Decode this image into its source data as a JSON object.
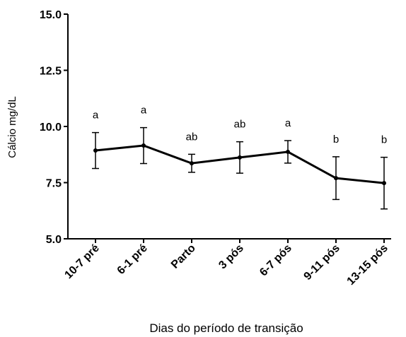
{
  "chart_data": {
    "type": "line",
    "y_label": "Cálcio mg/dL",
    "x_label": "Dias do período de transição",
    "categories": [
      "10-7 pré",
      "6-1 pré",
      "Parto",
      "3 pós",
      "6-7 pós",
      "9-11 pós",
      "13-15 pós"
    ],
    "series": [
      {
        "color": "#000000",
        "values": [
          8.93,
          9.15,
          8.36,
          8.62,
          8.87,
          7.7,
          7.48
        ],
        "errors": [
          0.8,
          0.8,
          0.4,
          0.7,
          0.5,
          0.95,
          1.15
        ],
        "annotations": [
          "a",
          "a",
          "ab",
          "ab",
          "a",
          "b",
          "b"
        ]
      }
    ],
    "ylim": [
      5,
      15
    ],
    "yticks": [
      {
        "value": 5,
        "label": "5.0"
      },
      7.5,
      {
        "value": 10,
        "label": "10.0"
      },
      12.5,
      {
        "value": 15,
        "label": "15.0"
      }
    ]
  }
}
